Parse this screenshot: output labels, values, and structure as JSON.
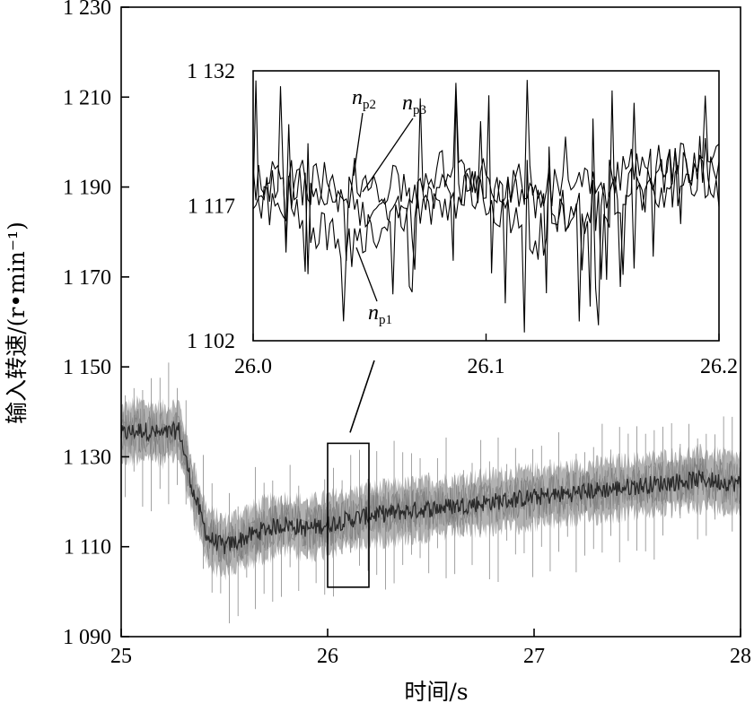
{
  "chart_data": [
    {
      "type": "line",
      "xlabel": "时间/s",
      "ylabel": "输入转速/(r•min⁻¹)",
      "xlim": [
        25,
        28
      ],
      "ylim": [
        1090,
        1230
      ],
      "x_ticks": [
        25,
        26,
        27,
        28
      ],
      "x_tick_labels": [
        "25",
        "26",
        "27",
        "28"
      ],
      "y_ticks": [
        1090,
        1110,
        1130,
        1150,
        1170,
        1190,
        1210,
        1230
      ],
      "y_tick_labels": [
        "1 090",
        "1 110",
        "1 130",
        "1 150",
        "1 170",
        "1 190",
        "1 210",
        "1 230"
      ],
      "trend": {
        "x": [
          25.0,
          25.1,
          25.2,
          25.28,
          25.35,
          25.42,
          25.5,
          25.6,
          25.7,
          25.8,
          25.9,
          26.0,
          26.2,
          26.4,
          26.6,
          26.8,
          27.0,
          27.2,
          27.4,
          27.6,
          27.8,
          28.0
        ],
        "y": [
          1135,
          1136,
          1135,
          1136,
          1122,
          1112,
          1110,
          1112,
          1114,
          1115,
          1114,
          1115,
          1117,
          1118,
          1119,
          1120,
          1121,
          1122,
          1123,
          1124,
          1125,
          1124
        ]
      },
      "zoom_box": {
        "x": [
          26.0,
          26.2
        ],
        "y": [
          1101,
          1133
        ]
      },
      "grid": false
    },
    {
      "type": "line",
      "role": "inset",
      "xlim": [
        26.0,
        26.2
      ],
      "ylim": [
        1102,
        1132
      ],
      "x_ticks": [
        26.0,
        26.1,
        26.2
      ],
      "x_tick_labels": [
        "26.0",
        "26.1",
        "26.2"
      ],
      "y_ticks": [
        1102,
        1117,
        1132
      ],
      "y_tick_labels": [
        "1 102",
        "1 117",
        "1 132"
      ],
      "series": [
        {
          "name": "n_p1",
          "x": [
            26.0,
            26.02,
            26.04,
            26.06,
            26.08,
            26.1,
            26.12,
            26.14,
            26.16,
            26.18,
            26.2
          ],
          "y": [
            1117,
            1116,
            1112,
            1116,
            1119,
            1118,
            1113,
            1117,
            1119,
            1118,
            1119
          ]
        },
        {
          "name": "n_p2",
          "x": [
            26.0,
            26.02,
            26.04,
            26.06,
            26.08,
            26.1,
            26.12,
            26.14,
            26.16,
            26.18,
            26.2
          ],
          "y": [
            1120,
            1119,
            1120,
            1119,
            1121,
            1120,
            1119,
            1120,
            1121,
            1122,
            1122
          ]
        },
        {
          "name": "n_p3",
          "x": [
            26.0,
            26.02,
            26.04,
            26.06,
            26.08,
            26.1,
            26.12,
            26.14,
            26.16,
            26.18,
            26.2
          ],
          "y": [
            1118,
            1120,
            1118,
            1115,
            1117,
            1120,
            1118,
            1116,
            1117,
            1121,
            1120
          ]
        }
      ],
      "series_labels": [
        {
          "main": "n",
          "sub": "p2"
        },
        {
          "main": "n",
          "sub": "p3"
        },
        {
          "main": "n",
          "sub": "p1"
        }
      ]
    }
  ]
}
